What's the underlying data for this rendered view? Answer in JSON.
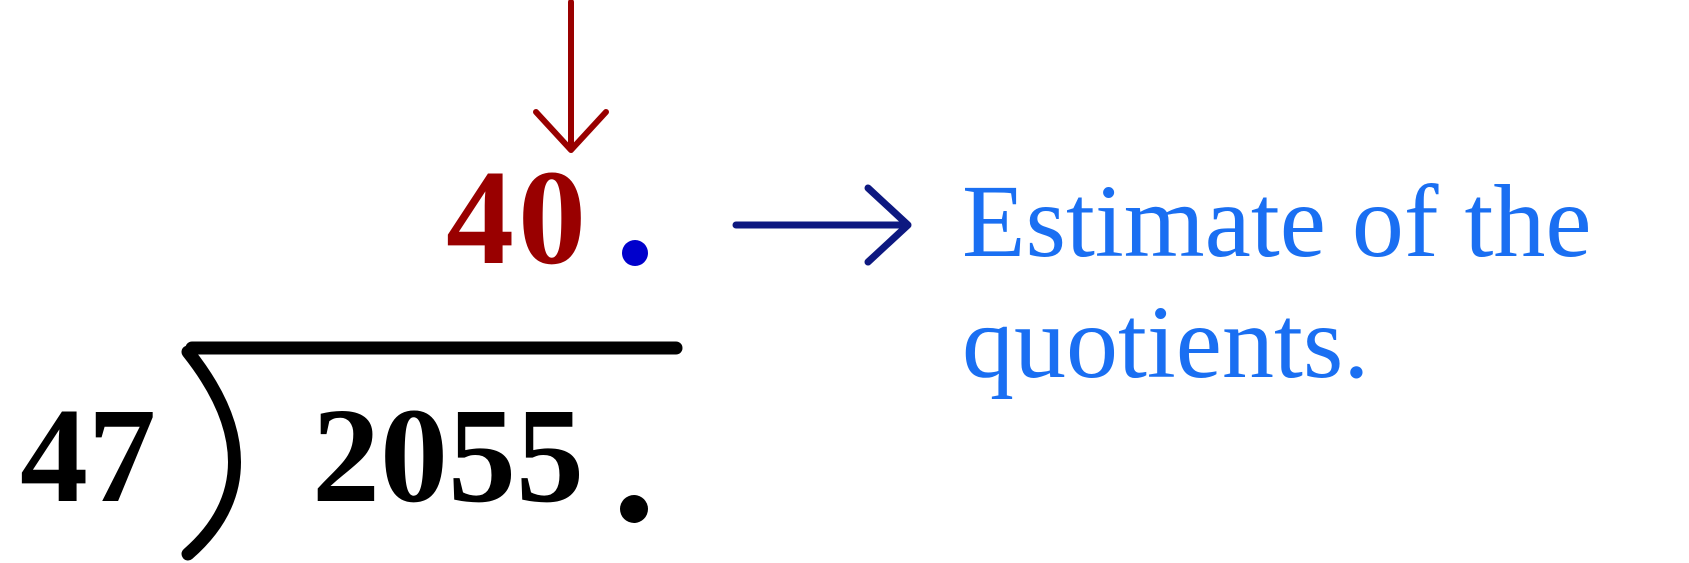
{
  "division": {
    "quotient_estimate": "40",
    "divisor": "47",
    "dividend": "2055",
    "decimal_point": "."
  },
  "annotation": {
    "text": "Estimate of the quotients."
  },
  "colors": {
    "quotient": "#990000",
    "down_arrow": "#990000",
    "annotation_text": "#1a6ff2",
    "annotation_arrow": "#0d1880",
    "quotient_decimal": "#0000cc",
    "division_bracket": "#000000"
  },
  "icons": {
    "down_arrow": "down-arrow-icon",
    "right_arrow": "right-arrow-icon"
  }
}
